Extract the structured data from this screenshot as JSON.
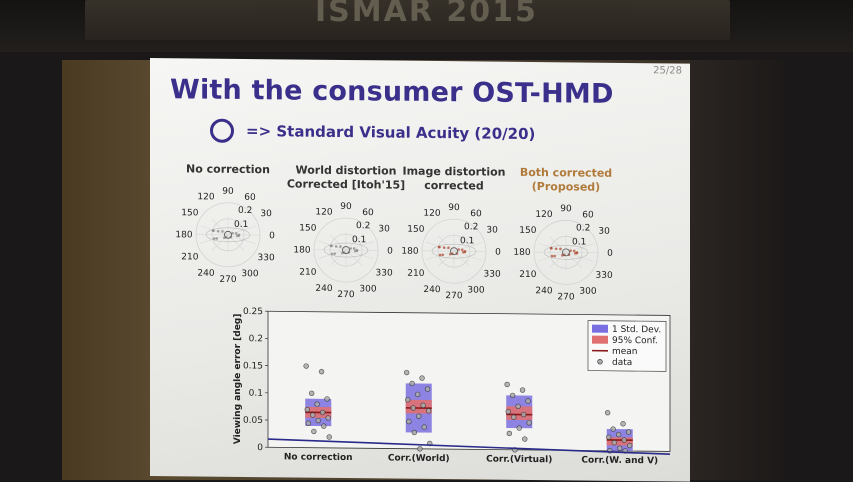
{
  "banner": {
    "text": "ISMAR 2015"
  },
  "slide": {
    "page": "25/28",
    "title": "With the consumer OST-HMD",
    "subtitle": "=> Standard Visual Acuity (20/20)",
    "icon": "circle-icon"
  },
  "polar_plots": [
    {
      "caption": "No correction",
      "accent": false
    },
    {
      "caption": "World distortion\nCorrected [Itoh'15]",
      "accent": false
    },
    {
      "caption": "Image distortion\ncorrected",
      "accent": false
    },
    {
      "caption": "Both corrected\n(Proposed)",
      "accent": true
    }
  ],
  "polar_labels": {
    "angles": [
      "90",
      "60",
      "30",
      "0",
      "330",
      "300",
      "270",
      "240",
      "210",
      "180",
      "150",
      "120"
    ],
    "radii": [
      "0.2",
      "0.1"
    ]
  },
  "colors": {
    "title": "#3a2f8a",
    "accent": "#b07a3a",
    "std_dev": "#7a6fe0",
    "conf": "#e07070",
    "mean": "#8b1a1a",
    "baseline": "#2a2a8a"
  },
  "chart_data": {
    "type": "box",
    "ylabel": "Viewing angle error [deg]",
    "ylim": [
      0,
      0.25
    ],
    "yticks": [
      "0",
      "0.05",
      "0.1",
      "0.15",
      "0.2",
      "0.25"
    ],
    "categories": [
      "No correction",
      "Corr.(World)",
      "Corr.(Virtual)",
      "Corr.(W. and V)"
    ],
    "std_dev": [
      [
        0.04,
        0.09
      ],
      [
        0.03,
        0.12
      ],
      [
        0.04,
        0.1
      ],
      [
        0,
        0.04
      ]
    ],
    "conf95": [
      [
        0.055,
        0.075
      ],
      [
        0.065,
        0.09
      ],
      [
        0.055,
        0.08
      ],
      [
        0.01,
        0.025
      ]
    ],
    "mean": [
      0.065,
      0.075,
      0.065,
      0.02
    ],
    "data": [
      [
        0.15,
        0.14,
        0.1,
        0.09,
        0.08,
        0.07,
        0.065,
        0.06,
        0.055,
        0.05,
        0.045,
        0.04,
        0.03,
        0.02
      ],
      [
        0.14,
        0.13,
        0.12,
        0.11,
        0.1,
        0.09,
        0.08,
        0.075,
        0.07,
        0.06,
        0.05,
        0.04,
        0.03,
        0.01,
        0.0
      ],
      [
        0.12,
        0.11,
        0.1,
        0.09,
        0.08,
        0.07,
        0.065,
        0.06,
        0.05,
        0.04,
        0.03,
        0.02,
        0.0
      ],
      [
        0.07,
        0.05,
        0.04,
        0.035,
        0.03,
        0.025,
        0.02,
        0.015,
        0.01,
        0.005,
        0.0,
        0.0
      ]
    ],
    "legend": [
      "1 Std. Dev.",
      "95% Conf.",
      "mean",
      "data"
    ],
    "legend_position": "top-right",
    "baseline": [
      0.015,
      -0.005
    ]
  }
}
